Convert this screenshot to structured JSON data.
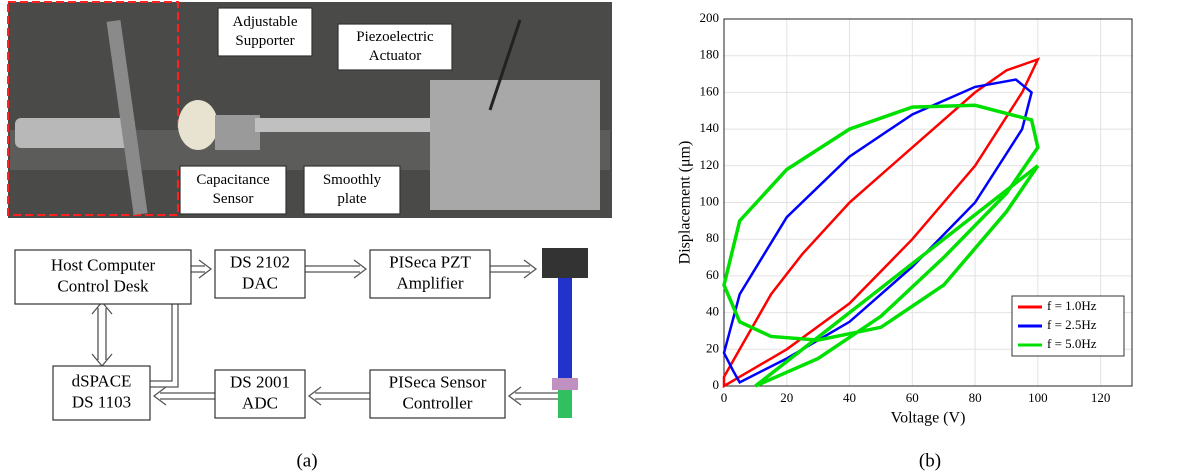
{
  "photo": {
    "labels": [
      {
        "lines": [
          "Adjustable",
          "Supporter"
        ]
      },
      {
        "lines": [
          "Piezoelectric",
          "Actuator"
        ]
      },
      {
        "lines": [
          "Capacitance",
          "Sensor"
        ]
      },
      {
        "lines": [
          "Smoothly",
          "plate"
        ]
      }
    ]
  },
  "diagram": {
    "nodes": [
      {
        "lines": [
          "Host Computer",
          "Control Desk"
        ]
      },
      {
        "lines": [
          "DS 2102",
          "DAC"
        ]
      },
      {
        "lines": [
          "PISeca PZT",
          "Amplifier"
        ]
      },
      {
        "lines": [
          "dSPACE",
          "DS 1103"
        ]
      },
      {
        "lines": [
          "DS 2001",
          "ADC"
        ]
      },
      {
        "lines": [
          "PISeca Sensor",
          "Controller"
        ]
      }
    ]
  },
  "captions": [
    "(a)",
    "(b)"
  ],
  "chart_data": {
    "type": "line",
    "xlabel": "Voltage (V)",
    "ylabel": "Displacement (μm)",
    "xlim": [
      0,
      130
    ],
    "xticks": [
      0,
      20,
      40,
      60,
      80,
      100,
      120
    ],
    "ylim": [
      0,
      200
    ],
    "yticks": [
      0,
      20,
      40,
      60,
      80,
      100,
      120,
      140,
      160,
      180,
      200
    ],
    "grid": true,
    "legend": "lower right",
    "series": [
      {
        "name": "f = 1.0Hz",
        "color": "#ff0000",
        "x": [
          0,
          20,
          40,
          60,
          80,
          95,
          100,
          90,
          80,
          60,
          40,
          25,
          15,
          5,
          0
        ],
        "y": [
          0,
          20,
          45,
          80,
          120,
          160,
          178,
          172,
          160,
          130,
          100,
          72,
          50,
          20,
          5
        ]
      },
      {
        "name": "f = 2.5Hz",
        "color": "#0000ff",
        "x": [
          5,
          20,
          40,
          60,
          80,
          95,
          98,
          93,
          80,
          60,
          40,
          20,
          5,
          0,
          3,
          5
        ],
        "y": [
          2,
          15,
          35,
          65,
          100,
          140,
          160,
          167,
          163,
          148,
          125,
          92,
          50,
          18,
          8,
          2
        ]
      },
      {
        "name": "f = 5.0Hz",
        "color": "#00e000",
        "x": [
          10,
          30,
          50,
          70,
          90,
          100,
          98,
          80,
          60,
          40,
          20,
          5,
          0,
          5,
          15,
          30,
          50,
          70,
          90,
          100
        ],
        "y": [
          0,
          15,
          38,
          70,
          105,
          130,
          145,
          153,
          152,
          140,
          118,
          90,
          55,
          35,
          27,
          25,
          32,
          55,
          95,
          120
        ]
      }
    ]
  }
}
